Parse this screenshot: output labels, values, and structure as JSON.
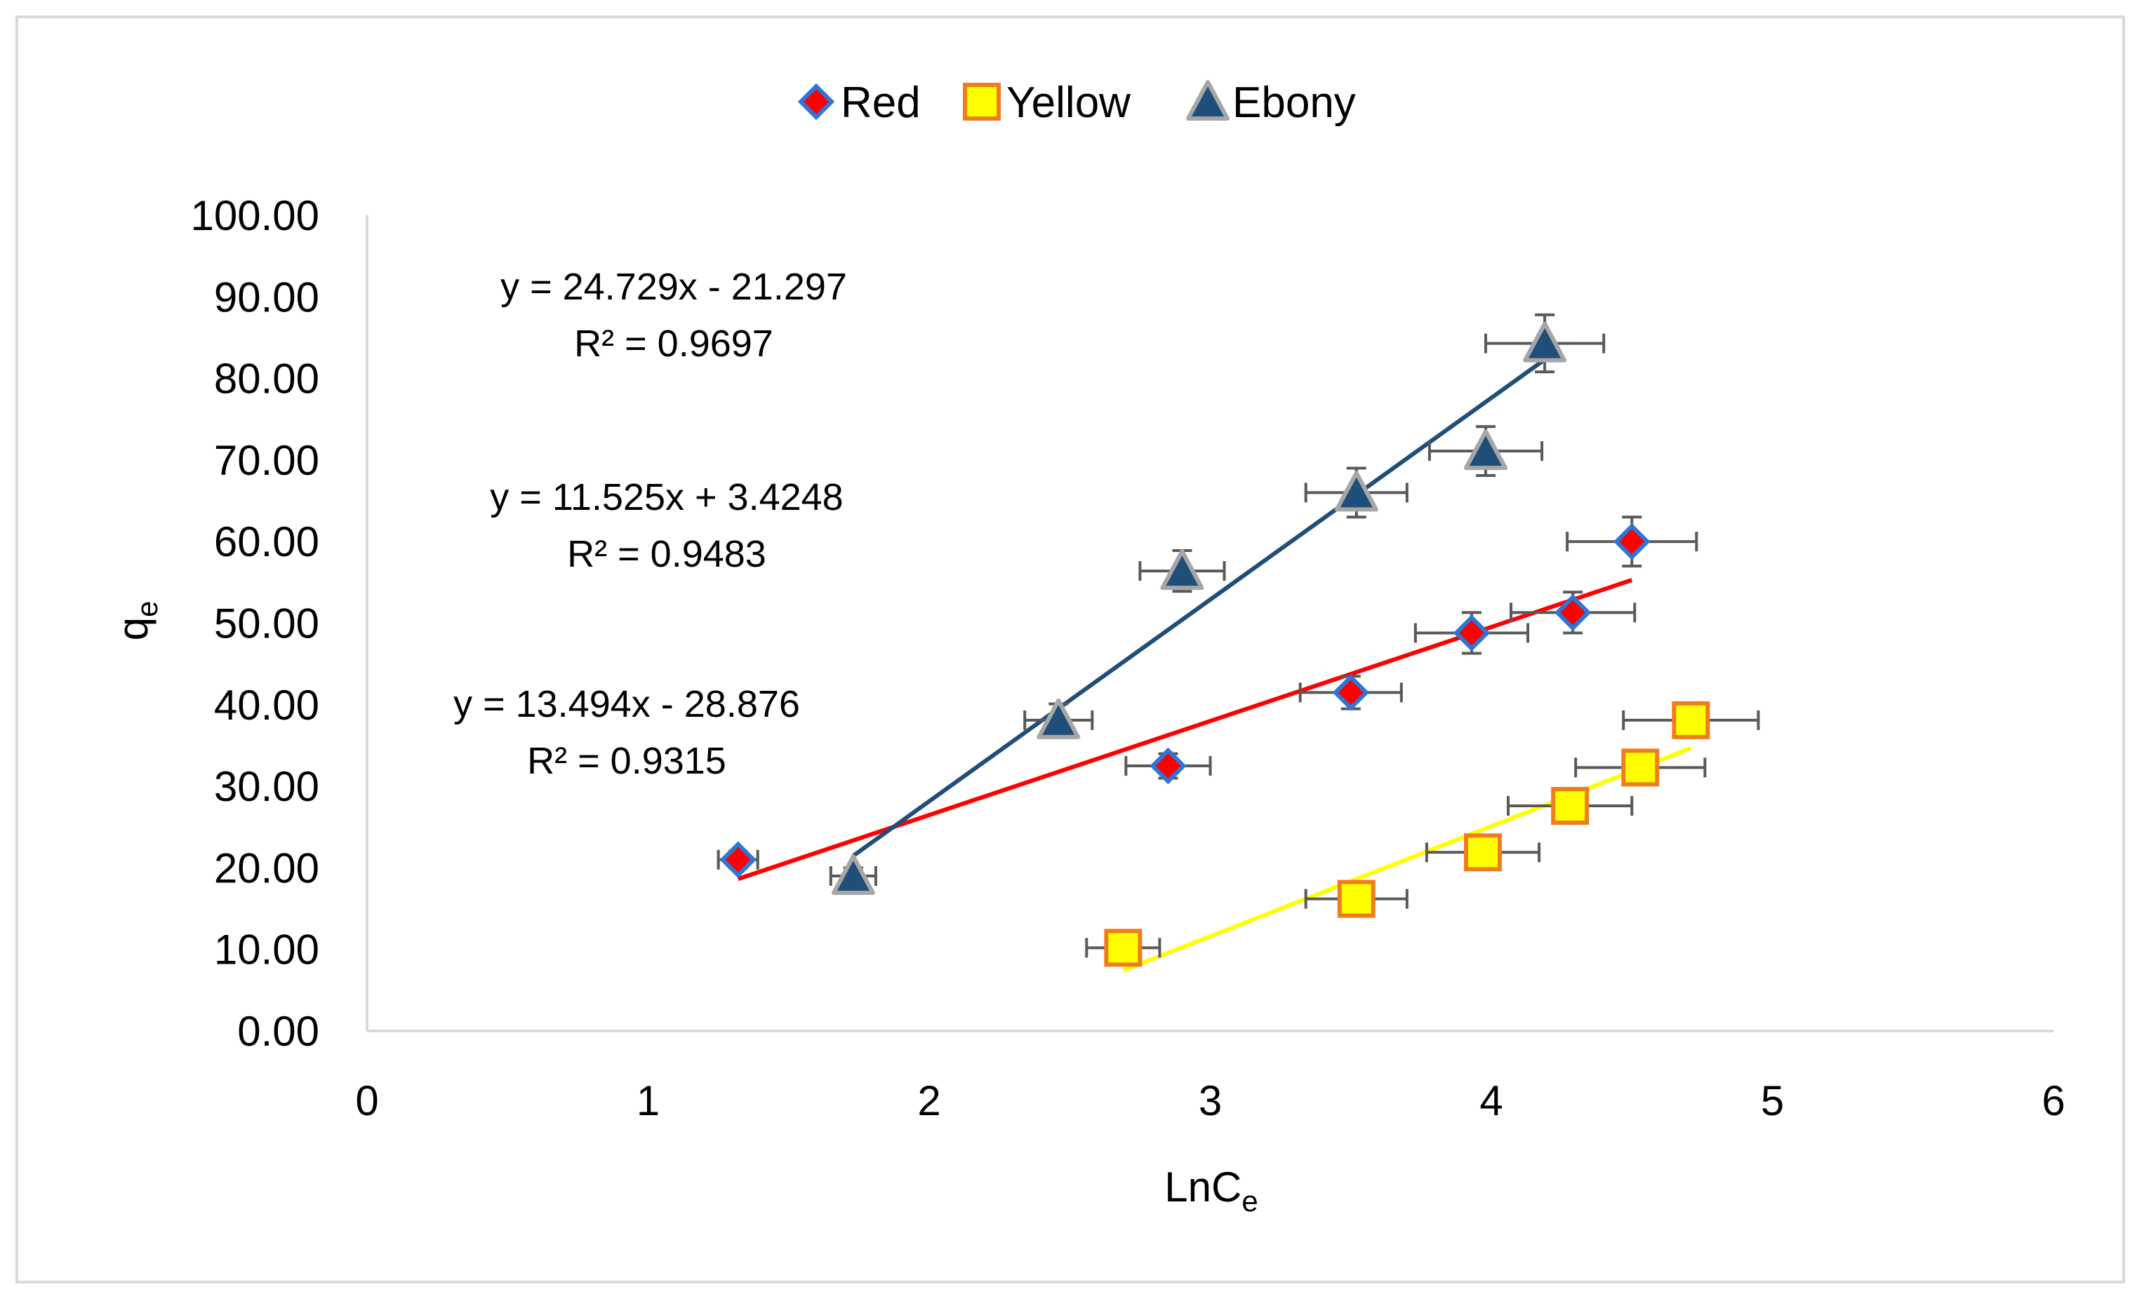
{
  "chart_data": {
    "type": "scatter",
    "title": "",
    "xlabel": {
      "main": "LnC",
      "sub": "e"
    },
    "ylabel": {
      "main": "q",
      "sub": "e"
    },
    "xlim": [
      0,
      6
    ],
    "ylim": [
      0,
      100
    ],
    "x_ticks": [
      "0",
      "1",
      "2",
      "3",
      "4",
      "5",
      "6"
    ],
    "y_ticks": [
      "0.00",
      "10.00",
      "20.00",
      "30.00",
      "40.00",
      "50.00",
      "60.00",
      "70.00",
      "80.00",
      "90.00",
      "100.00"
    ],
    "grid": false,
    "legend_position": "top",
    "series": [
      {
        "name": "Red",
        "marker": "diamond",
        "fill": "#ff0000",
        "stroke": "#2e75d6",
        "line_color": "#ff0000",
        "points": [
          {
            "x": 1.32,
            "y": 21.0,
            "xerr": 0.07,
            "yerr": 1.0
          },
          {
            "x": 2.85,
            "y": 32.5,
            "xerr": 0.15,
            "yerr": 1.5
          },
          {
            "x": 3.5,
            "y": 41.5,
            "xerr": 0.18,
            "yerr": 2.0
          },
          {
            "x": 3.93,
            "y": 48.8,
            "xerr": 0.2,
            "yerr": 2.5
          },
          {
            "x": 4.29,
            "y": 51.3,
            "xerr": 0.22,
            "yerr": 2.5
          },
          {
            "x": 4.5,
            "y": 60.0,
            "xerr": 0.23,
            "yerr": 3.0
          }
        ],
        "trend_x": [
          1.32,
          4.5
        ],
        "equation": "y = 11.525x + 3.4248",
        "r2": "R² = 0.9483"
      },
      {
        "name": "Yellow",
        "marker": "square",
        "fill": "#ffff00",
        "stroke": "#f07c1c",
        "line_color": "#ffff00",
        "points": [
          {
            "x": 2.69,
            "y": 10.2,
            "xerr": 0.13,
            "yerr": 0.5
          },
          {
            "x": 3.52,
            "y": 16.2,
            "xerr": 0.18,
            "yerr": 1.0
          },
          {
            "x": 3.97,
            "y": 21.9,
            "xerr": 0.2,
            "yerr": 1.0
          },
          {
            "x": 4.28,
            "y": 27.6,
            "xerr": 0.22,
            "yerr": 1.5
          },
          {
            "x": 4.53,
            "y": 32.3,
            "xerr": 0.23,
            "yerr": 1.5
          },
          {
            "x": 4.71,
            "y": 38.1,
            "xerr": 0.24,
            "yerr": 2.0
          }
        ],
        "trend_x": [
          2.69,
          4.71
        ],
        "equation": "y = 13.494x - 28.876",
        "r2": "R² = 0.9315"
      },
      {
        "name": "Ebony",
        "marker": "triangle",
        "fill": "#1f4e79",
        "stroke": "#a6a6a6",
        "line_color": "#1f4e79",
        "points": [
          {
            "x": 1.73,
            "y": 19.0,
            "xerr": 0.08,
            "yerr": 1.0
          },
          {
            "x": 2.46,
            "y": 38.1,
            "xerr": 0.12,
            "yerr": 2.0
          },
          {
            "x": 2.9,
            "y": 56.4,
            "xerr": 0.15,
            "yerr": 2.5
          },
          {
            "x": 3.52,
            "y": 66.0,
            "xerr": 0.18,
            "yerr": 3.0
          },
          {
            "x": 3.98,
            "y": 71.1,
            "xerr": 0.2,
            "yerr": 3.0
          },
          {
            "x": 4.19,
            "y": 84.3,
            "xerr": 0.21,
            "yerr": 3.5
          }
        ],
        "trend_x": [
          1.73,
          4.19
        ],
        "equation": "y = 24.729x - 21.297",
        "r2": "R² = 0.9697"
      }
    ]
  }
}
